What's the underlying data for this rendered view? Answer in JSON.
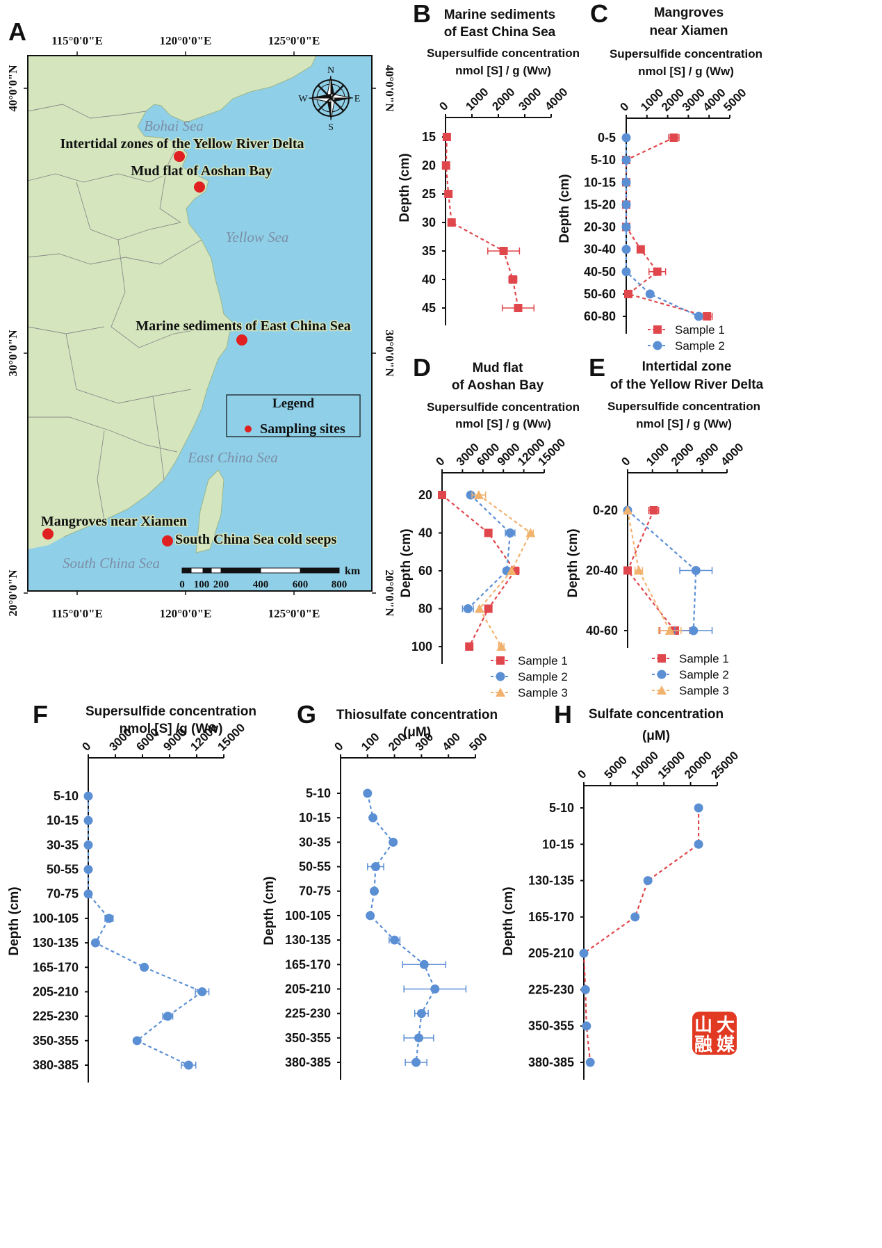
{
  "map": {
    "panel_letter": "A",
    "lon_labels": [
      "115°0'0\"E",
      "120°0'0\"E",
      "125°0'0\"E"
    ],
    "lat_labels": [
      "40°0'0\"N",
      "30°0'0\"N",
      "20°0'0\"N"
    ],
    "seas": [
      "Bohai Sea",
      "Yellow Sea",
      "East China Sea",
      "South China Sea"
    ],
    "sites": [
      "Intertidal zones of the Yellow River Delta",
      "Mud flat of Aoshan Bay",
      "Marine sediments of East China Sea",
      "Mangroves near Xiamen",
      "South China Sea cold seeps"
    ],
    "legend": {
      "title": "Legend",
      "item": "Sampling sites"
    },
    "compass": {
      "n": "N",
      "s": "S",
      "e": "E",
      "w": "W"
    },
    "scale": {
      "ticks": [
        "0",
        "100",
        "200",
        "400",
        "600",
        "800"
      ],
      "unit": "km"
    },
    "colors": {
      "land": "#d5e6be",
      "water": "#8fd0e8",
      "site": "#e02020",
      "boundary": "#8a8a8a",
      "sea_label": "#7b8ea6"
    }
  },
  "watermark": {
    "text": "山大融媒",
    "color": "#e23a22"
  },
  "chart_data": [
    {
      "id": "B",
      "type": "line",
      "panel_letter": "B",
      "title": [
        "Marine sediments",
        "of East China Sea"
      ],
      "xlabel": [
        "Supersulfide concentration",
        "nmol [S] / g (Ww)"
      ],
      "ylabel": "Depth  (cm)",
      "xlim": [
        0,
        4000
      ],
      "x_ticks": [
        "0",
        "1000",
        "2000",
        "3000",
        "4000"
      ],
      "categories": [
        "15",
        "20",
        "25",
        "30",
        "35",
        "40",
        "45"
      ],
      "series": [
        {
          "color": "#e0474c",
          "marker": "square",
          "values": [
            50,
            20,
            110,
            230,
            2200,
            2550,
            2750
          ],
          "errors": [
            0,
            0,
            0,
            0,
            600,
            150,
            600
          ]
        }
      ]
    },
    {
      "id": "C",
      "type": "line",
      "panel_letter": "C",
      "title": [
        "Mangroves",
        "near Xiamen"
      ],
      "xlabel": [
        "Supersulfide concentration",
        "nmol [S] / g (Ww)"
      ],
      "ylabel": "Depth  (cm)",
      "xlim": [
        0,
        5000
      ],
      "x_ticks": [
        "0",
        "1000",
        "2000",
        "3000",
        "4000",
        "5000"
      ],
      "categories": [
        "0-5",
        "5-10",
        "10-15",
        "15-20",
        "20-30",
        "30-40",
        "40-50",
        "50-60",
        "60-80"
      ],
      "series": [
        {
          "name": "Sample 1",
          "color": "#e0474c",
          "marker": "square",
          "values": [
            2300,
            0,
            0,
            0,
            0,
            700,
            1500,
            100,
            3900
          ],
          "errors": [
            250,
            0,
            0,
            0,
            0,
            150,
            400,
            0,
            250
          ]
        },
        {
          "name": "Sample 2",
          "color": "#5b8fd4",
          "marker": "circle",
          "values": [
            0,
            0,
            0,
            0,
            0,
            0,
            0,
            1150,
            3500
          ],
          "errors": [
            0,
            0,
            0,
            0,
            0,
            0,
            0,
            120,
            0
          ]
        }
      ]
    },
    {
      "id": "D",
      "type": "line",
      "panel_letter": "D",
      "title": [
        "Mud flat",
        "of Aoshan Bay"
      ],
      "xlabel": [
        "Supersulfide concentration",
        "nmol [S] / g (Ww)"
      ],
      "ylabel": "Depth  (cm)",
      "xlim": [
        0,
        15000
      ],
      "x_ticks": [
        "0",
        "3000",
        "6000",
        "9000",
        "12000",
        "15000"
      ],
      "categories": [
        "20",
        "40",
        "60",
        "80",
        "100"
      ],
      "series": [
        {
          "name": "Sample 1",
          "color": "#e0474c",
          "marker": "square",
          "values": [
            0,
            6800,
            10700,
            6800,
            4000
          ],
          "errors": [
            0,
            0,
            600,
            0,
            0
          ]
        },
        {
          "name": "Sample 2",
          "color": "#5b8fd4",
          "marker": "circle",
          "values": [
            4200,
            10000,
            9500,
            3800,
            null
          ],
          "errors": [
            0,
            700,
            0,
            800,
            0
          ]
        },
        {
          "name": "Sample 3",
          "color": "#f1b26d",
          "marker": "triangle",
          "values": [
            5400,
            13000,
            10200,
            5500,
            8700
          ],
          "errors": [
            1000,
            400,
            0,
            0,
            400
          ]
        }
      ]
    },
    {
      "id": "E",
      "type": "line",
      "panel_letter": "E",
      "title": [
        "Intertidal zone",
        "of the Yellow River Delta"
      ],
      "xlabel": [
        "Supersulfide concentration",
        "nmol [S] / g (Ww)"
      ],
      "ylabel": "Depth  (cm)",
      "xlim": [
        0,
        4000
      ],
      "x_ticks": [
        "0",
        "1000",
        "2000",
        "3000",
        "4000"
      ],
      "categories": [
        "0-20",
        "20-40",
        "40-60"
      ],
      "series": [
        {
          "name": "Sample 1",
          "color": "#e0474c",
          "marker": "square",
          "values": [
            1050,
            0,
            1900
          ],
          "errors": [
            200,
            0,
            600
          ]
        },
        {
          "name": "Sample 2",
          "color": "#5b8fd4",
          "marker": "circle",
          "values": [
            0,
            2750,
            2650
          ],
          "errors": [
            0,
            650,
            750
          ]
        },
        {
          "name": "Sample 3",
          "color": "#f1b26d",
          "marker": "triangle",
          "values": [
            0,
            450,
            1700
          ],
          "errors": [
            0,
            150,
            450
          ]
        }
      ]
    },
    {
      "id": "F",
      "type": "line",
      "panel_letter": "F",
      "title": [
        "Supersulfide concentration",
        "nmol [S] /g (Ww)"
      ],
      "ylabel": "Depth  (cm)",
      "xlim": [
        0,
        15000
      ],
      "x_ticks": [
        "0",
        "3000",
        "6000",
        "9000",
        "12000",
        "15000"
      ],
      "categories": [
        "5-10",
        "10-15",
        "30-35",
        "50-55",
        "70-75",
        "100-105",
        "130-135",
        "165-170",
        "205-210",
        "225-230",
        "350-355",
        "380-385"
      ],
      "series": [
        {
          "color": "#5b8fd4",
          "marker": "circle",
          "values": [
            0,
            0,
            0,
            0,
            0,
            2300,
            800,
            6200,
            12600,
            8800,
            5400,
            11100
          ],
          "errors": [
            0,
            0,
            0,
            0,
            0,
            450,
            0,
            0,
            750,
            550,
            0,
            800
          ]
        }
      ]
    },
    {
      "id": "G",
      "type": "line",
      "panel_letter": "G",
      "title": [
        "Thiosulfate concentration",
        "(μM)"
      ],
      "ylabel": "Depth  (cm)",
      "xlim": [
        0,
        500
      ],
      "x_ticks": [
        "0",
        "100",
        "200",
        "300",
        "400",
        "500"
      ],
      "categories": [
        "5-10",
        "10-15",
        "30-35",
        "50-55",
        "70-75",
        "100-105",
        "130-135",
        "165-170",
        "205-210",
        "225-230",
        "350-355",
        "380-385"
      ],
      "series": [
        {
          "color": "#5b8fd4",
          "marker": "circle",
          "values": [
            100,
            120,
            195,
            130,
            125,
            110,
            200,
            310,
            350,
            300,
            290,
            280
          ],
          "errors": [
            0,
            0,
            0,
            30,
            0,
            0,
            20,
            80,
            115,
            25,
            55,
            40
          ]
        }
      ]
    },
    {
      "id": "H",
      "type": "line",
      "panel_letter": "H",
      "title": [
        "Sulfate concentration",
        "(μM)"
      ],
      "ylabel": "Depth  (cm)",
      "xlim": [
        0,
        25000
      ],
      "x_ticks": [
        "0",
        "5000",
        "10000",
        "15000",
        "20000",
        "25000"
      ],
      "categories": [
        "5-10",
        "10-15",
        "130-135",
        "165-170",
        "205-210",
        "225-230",
        "350-355",
        "380-385"
      ],
      "series": [
        {
          "color": "#5b8fd4",
          "marker": "circle",
          "line_color": "#e0474c",
          "values": [
            21500,
            21500,
            12000,
            9600,
            0,
            300,
            500,
            1200
          ],
          "errors": [
            0,
            0,
            0,
            0,
            0,
            0,
            0,
            0
          ]
        }
      ]
    }
  ]
}
